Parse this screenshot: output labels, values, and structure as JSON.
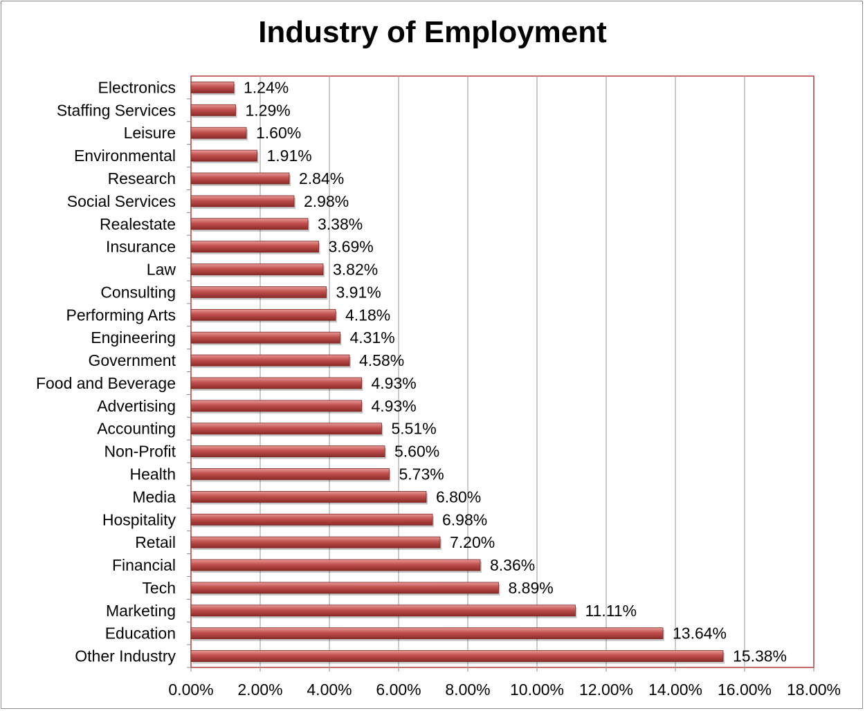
{
  "chart_data": {
    "type": "bar",
    "orientation": "horizontal",
    "title": "Industry of Employment",
    "xlabel": "",
    "ylabel": "",
    "xlim": [
      0,
      18
    ],
    "x_ticks": [
      "0.00%",
      "2.00%",
      "4.00%",
      "6.00%",
      "8.00%",
      "10.00%",
      "12.00%",
      "14.00%",
      "16.00%",
      "18.00%"
    ],
    "grid": true,
    "legend": "none",
    "bar_color": "#c0504d",
    "plot_border_color": "#b03a3a",
    "categories": [
      "Electronics",
      "Staffing Services",
      "Leisure",
      "Environmental",
      "Research",
      "Social Services",
      "Realestate",
      "Insurance",
      "Law",
      "Consulting",
      "Performing Arts",
      "Engineering",
      "Government",
      "Food and Beverage",
      "Advertising",
      "Accounting",
      "Non-Profit",
      "Health",
      "Media",
      "Hospitality",
      "Retail",
      "Financial",
      "Tech",
      "Marketing",
      "Education",
      "Other Industry"
    ],
    "values": [
      1.24,
      1.29,
      1.6,
      1.91,
      2.84,
      2.98,
      3.38,
      3.69,
      3.82,
      3.91,
      4.18,
      4.31,
      4.58,
      4.93,
      4.93,
      5.51,
      5.6,
      5.73,
      6.8,
      6.98,
      7.2,
      8.36,
      8.89,
      11.11,
      13.64,
      15.38
    ],
    "data_labels": [
      "1.24%",
      "1.29%",
      "1.60%",
      "1.91%",
      "2.84%",
      "2.98%",
      "3.38%",
      "3.69%",
      "3.82%",
      "3.91%",
      "4.18%",
      "4.31%",
      "4.58%",
      "4.93%",
      "4.93%",
      "5.51%",
      "5.60%",
      "5.73%",
      "6.80%",
      "6.98%",
      "7.20%",
      "8.36%",
      "8.89%",
      "11.11%",
      "13.64%",
      "15.38%"
    ]
  }
}
